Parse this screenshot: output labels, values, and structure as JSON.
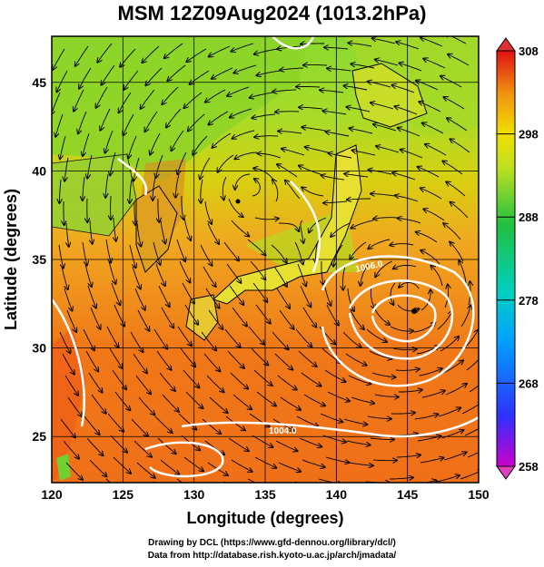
{
  "title": "MSM 12Z09Aug2024 (1013.2hPa)",
  "map": {
    "xlabel": "Longitude (degrees)",
    "ylabel": "Latitude  (degrees)",
    "xticks": [
      "120",
      "125",
      "130",
      "135",
      "140",
      "145",
      "150"
    ],
    "yticks": [
      "25",
      "30",
      "35",
      "40",
      "45"
    ],
    "xlim": [
      120,
      150
    ],
    "ylim": [
      22.4,
      47.6
    ],
    "contour_labels": [
      "1006.0",
      "1004.0"
    ],
    "typhoon_center": {
      "lon": 145.2,
      "lat": 33.0
    },
    "low_center": {
      "lon": 133.8,
      "lat": 39.1
    }
  },
  "colorbar": {
    "ticks": [
      "308",
      "298",
      "288",
      "278",
      "268",
      "258"
    ],
    "min": 258,
    "max": 308
  },
  "credits": {
    "line1": "Drawing by DCL (https://www.gfd-dennou.org/library/dcl/)",
    "line2": "Data from http://database.rish.kyoto-u.ac.jp/arch/jmadata/"
  },
  "colors": {
    "warm": "#f07818",
    "mid": "#f0c800",
    "cool": "#60d020",
    "contour": "#ffffff"
  }
}
